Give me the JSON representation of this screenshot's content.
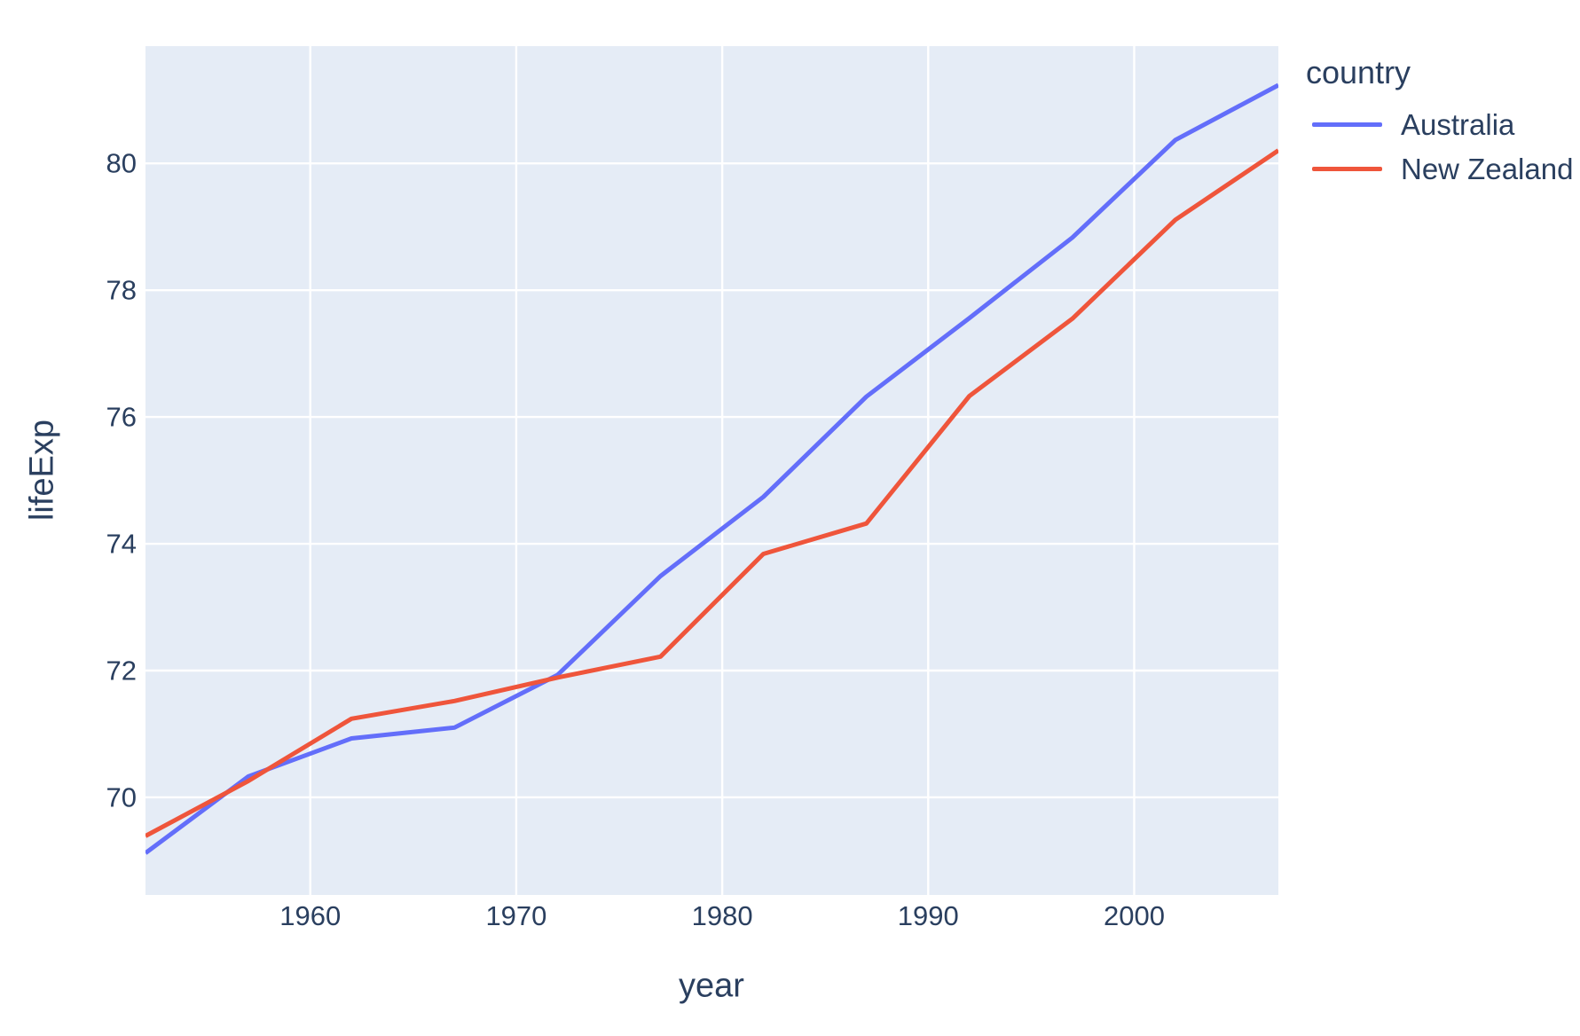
{
  "figure": {
    "background_color": "#ffffff",
    "plot_background_color": "#E5ECF6",
    "grid_color": "#ffffff",
    "text_color": "#2a3f5f"
  },
  "chart_data": {
    "type": "line",
    "xlabel": "year",
    "ylabel": "lifeExp",
    "x": [
      1952,
      1957,
      1962,
      1967,
      1972,
      1977,
      1982,
      1987,
      1992,
      1997,
      2002,
      2007
    ],
    "series": [
      {
        "name": "Australia",
        "color": "#636EFA",
        "values": [
          69.12,
          70.33,
          70.93,
          71.1,
          71.93,
          73.49,
          74.74,
          76.32,
          77.56,
          78.83,
          80.37,
          81.235
        ]
      },
      {
        "name": "New Zealand",
        "color": "#EF553B",
        "values": [
          69.39,
          70.26,
          71.24,
          71.52,
          71.89,
          72.22,
          73.84,
          74.32,
          76.33,
          77.55,
          79.11,
          80.204
        ]
      }
    ],
    "xlim": [
      1952,
      2007
    ],
    "ylim": [
      68.46,
      81.85
    ],
    "x_ticks": [
      1960,
      1970,
      1980,
      1990,
      2000
    ],
    "y_ticks": [
      70,
      72,
      74,
      76,
      78,
      80
    ],
    "grid": true,
    "line_width": 5,
    "legend": {
      "title": "country",
      "position": "top-right-outside"
    }
  }
}
